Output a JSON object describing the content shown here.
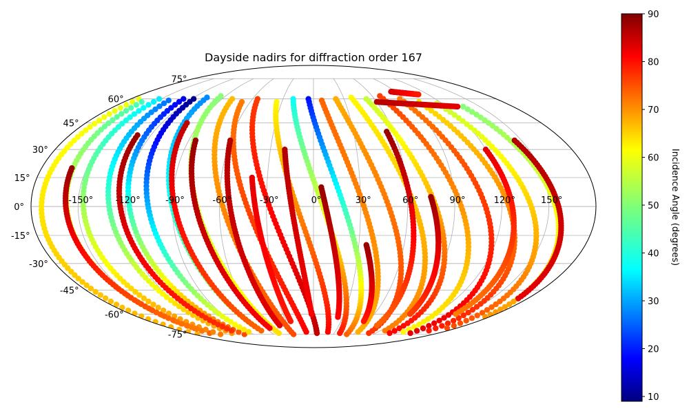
{
  "chart_data": {
    "type": "scatter",
    "projection": "mollweide",
    "title": "Dayside nadirs for diffraction order 167",
    "xlabel": "",
    "ylabel": "",
    "grid": true,
    "xlim": [
      -180,
      180
    ],
    "ylim": [
      -90,
      90
    ],
    "lon_ticks": [
      -150,
      -120,
      -90,
      -60,
      -30,
      0,
      30,
      60,
      90,
      120,
      150
    ],
    "lon_tick_labels": [
      "-150°",
      "-120°",
      "-90°",
      "-60°",
      "-30°",
      "0°",
      "30°",
      "60°",
      "90°",
      "120°",
      "150°"
    ],
    "lat_ticks": [
      75,
      60,
      45,
      30,
      15,
      0,
      -15,
      -30,
      -45,
      -60,
      -75
    ],
    "lat_tick_labels": [
      "75°",
      "60°",
      "45°",
      "30°",
      "15°",
      "0°",
      "-15°",
      "-30°",
      "-45°",
      "-60°",
      "-75°"
    ],
    "colorbar": {
      "label": "Incidence Angle (degrees)",
      "colormap": "jet",
      "range": [
        9,
        90
      ],
      "ticks": [
        10,
        20,
        30,
        40,
        50,
        60,
        70,
        80,
        90
      ],
      "tick_labels": [
        "10",
        "20",
        "30",
        "40",
        "50",
        "60",
        "70",
        "80",
        "90"
      ]
    },
    "tracks": [
      {
        "lon0": -172,
        "lat0": 60,
        "lon1": -175,
        "lat1": -75,
        "i0": 58,
        "i1": 66
      },
      {
        "lon0": -163,
        "lat0": 58,
        "lon1": -150,
        "lat1": -74,
        "i0": 45,
        "i1": 72
      },
      {
        "lon0": -152,
        "lat0": 60,
        "lon1": -140,
        "lat1": -75,
        "i0": 38,
        "i1": 70
      },
      {
        "lon0": -140,
        "lat0": 59,
        "lon1": -118,
        "lat1": -74,
        "i0": 28,
        "i1": 68
      },
      {
        "lon0": -128,
        "lat0": 60,
        "lon1": -104,
        "lat1": -75,
        "i0": 18,
        "i1": 74
      },
      {
        "lon0": -118,
        "lat0": 60,
        "lon1": -90,
        "lat1": -73,
        "i0": 10,
        "i1": 62
      },
      {
        "lon0": -107,
        "lat0": 61,
        "lon1": -70,
        "lat1": -72,
        "i0": 30,
        "i1": 55
      },
      {
        "lon0": -95,
        "lat0": 62,
        "lon1": -50,
        "lat1": -74,
        "i0": 50,
        "i1": 62
      },
      {
        "lon0": -80,
        "lat0": 60,
        "lon1": -30,
        "lat1": -75,
        "i0": 65,
        "i1": 74
      },
      {
        "lon0": -68,
        "lat0": 58,
        "lon1": -10,
        "lat1": -73,
        "i0": 70,
        "i1": 80
      },
      {
        "lon0": -55,
        "lat0": 60,
        "lon1": 5,
        "lat1": -74,
        "i0": 75,
        "i1": 85
      },
      {
        "lon0": -35,
        "lat0": 58,
        "lon1": 20,
        "lat1": -73,
        "i0": 60,
        "i1": 80
      },
      {
        "lon0": -20,
        "lat0": 60,
        "lon1": 38,
        "lat1": -74,
        "i0": 40,
        "i1": 78
      },
      {
        "lon0": -5,
        "lat0": 60,
        "lon1": 50,
        "lat1": -75,
        "i0": 20,
        "i1": 72
      },
      {
        "lon0": 8,
        "lat0": 59,
        "lon1": 62,
        "lat1": -73,
        "i0": 72,
        "i1": 66
      },
      {
        "lon0": 22,
        "lat0": 60,
        "lon1": 80,
        "lat1": -74,
        "i0": 66,
        "i1": 76
      },
      {
        "lon0": 38,
        "lat0": 61,
        "lon1": 96,
        "lat1": -72,
        "i0": 60,
        "i1": 70
      },
      {
        "lon0": 52,
        "lat0": 60,
        "lon1": 110,
        "lat1": -74,
        "i0": 55,
        "i1": 80
      },
      {
        "lon0": 68,
        "lat0": 62,
        "lon1": 125,
        "lat1": -73,
        "i0": 75,
        "i1": 60
      },
      {
        "lon0": 85,
        "lat0": 60,
        "lon1": 140,
        "lat1": -74,
        "i0": 70,
        "i1": 82
      },
      {
        "lon0": 100,
        "lat0": 58,
        "lon1": 155,
        "lat1": -72,
        "i0": 62,
        "i1": 78
      },
      {
        "lon0": 115,
        "lat0": 57,
        "lon1": 168,
        "lat1": -70,
        "i0": 55,
        "i1": 74
      },
      {
        "lon0": 135,
        "lat0": 55,
        "lon1": 176,
        "lat1": -62,
        "i0": 50,
        "i1": 68
      },
      {
        "lon0": -160,
        "lat0": 20,
        "lon1": -150,
        "lat1": -72,
        "i0": 88,
        "i1": 70
      },
      {
        "lon0": -130,
        "lat0": 38,
        "lon1": -110,
        "lat1": -72,
        "i0": 88,
        "i1": 76
      },
      {
        "lon0": -100,
        "lat0": 45,
        "lon1": -70,
        "lat1": -72,
        "i0": 85,
        "i1": 72
      },
      {
        "lon0": -85,
        "lat0": 35,
        "lon1": -55,
        "lat1": -70,
        "i0": 88,
        "i1": 80
      },
      {
        "lon0": -60,
        "lat0": 35,
        "lon1": -40,
        "lat1": -68,
        "i0": 86,
        "i1": 82
      },
      {
        "lon0": -40,
        "lat0": 15,
        "lon1": -25,
        "lat1": -65,
        "i0": 82,
        "i1": 78
      },
      {
        "lon0": -20,
        "lat0": 30,
        "lon1": -2,
        "lat1": -60,
        "i0": 86,
        "i1": 80
      },
      {
        "lon0": 5,
        "lat0": 10,
        "lon1": 25,
        "lat1": -62,
        "i0": 88,
        "i1": 80
      },
      {
        "lon0": 35,
        "lat0": -20,
        "lon1": 55,
        "lat1": -65,
        "i0": 88,
        "i1": 78
      },
      {
        "lon0": 75,
        "lat0": 5,
        "lon1": 95,
        "lat1": -60,
        "i0": 88,
        "i1": 75
      },
      {
        "lon0": 55,
        "lat0": 40,
        "lon1": 75,
        "lat1": -68,
        "i0": 88,
        "i1": 72
      },
      {
        "lon0": 120,
        "lat0": 30,
        "lon1": 140,
        "lat1": -60,
        "i0": 82,
        "i1": 70
      },
      {
        "lon0": 145,
        "lat0": 35,
        "lon1": 172,
        "lat1": -50,
        "i0": 86,
        "i1": 82
      },
      {
        "lon0": 60,
        "lat0": 58,
        "lon1": 130,
        "lat1": 55,
        "i0": 86,
        "i1": 82
      },
      {
        "lon0": 85,
        "lat0": 65,
        "lon1": 110,
        "lat1": 63,
        "i0": 84,
        "i1": 78
      }
    ]
  }
}
